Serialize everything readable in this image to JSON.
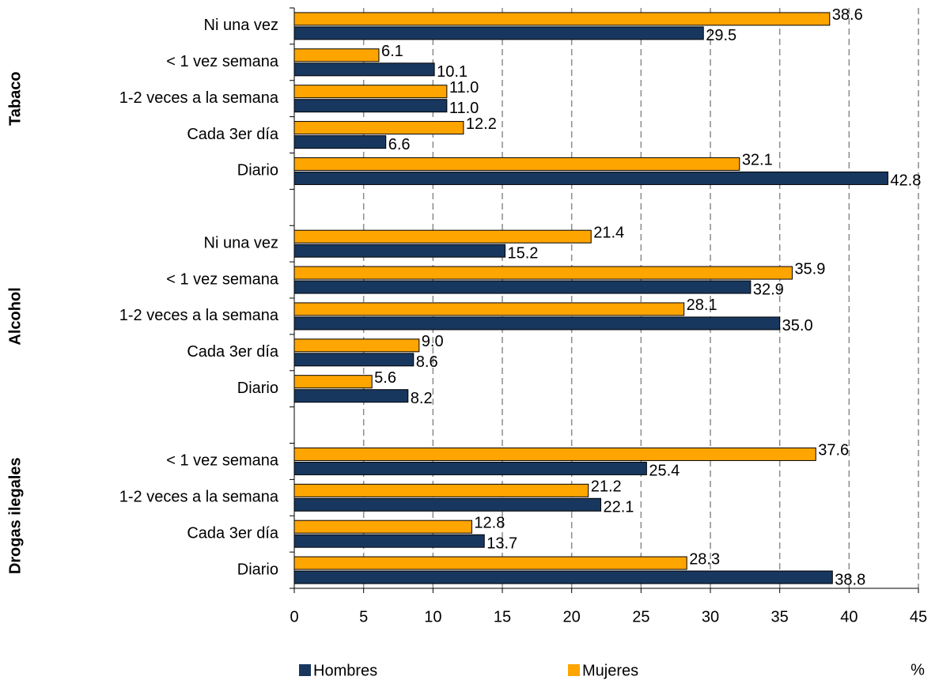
{
  "chart_data": {
    "type": "bar",
    "orientation": "horizontal",
    "groups": [
      "Tabaco",
      "Alcohol",
      "Drogas ilegales"
    ],
    "categories": [
      "Ni una vez",
      "< 1 vez semana",
      "1-2 veces a la semana",
      "Cada 3er día",
      "Diario",
      null,
      "Ni una vez",
      "< 1 vez semana",
      "1-2 veces a la semana",
      "Cada 3er día",
      "Diario",
      null,
      "< 1 vez semana",
      "1-2 veces a la semana",
      "Cada 3er día",
      "Diario"
    ],
    "series": [
      {
        "name": "Hombres",
        "color": "#17375e",
        "values": [
          29.5,
          10.1,
          11.0,
          6.6,
          42.8,
          null,
          15.2,
          32.9,
          35.0,
          8.6,
          8.2,
          null,
          25.4,
          22.1,
          13.7,
          38.8
        ],
        "value_labels": [
          "29.5",
          "10.1",
          "11.0",
          "6.6",
          "42.8",
          null,
          "15.2",
          "32.9",
          "35.0",
          "8.6",
          "8.2",
          null,
          "25.4",
          "22.1",
          "13.7",
          "38.8"
        ]
      },
      {
        "name": "Mujeres",
        "color": "#ffa500",
        "values": [
          38.6,
          6.1,
          11.0,
          12.2,
          32.1,
          null,
          21.4,
          35.9,
          28.1,
          9.0,
          5.6,
          null,
          37.6,
          21.2,
          12.8,
          28.3
        ],
        "value_labels": [
          "38.6",
          "6.1",
          "11.0",
          "12.2",
          "32.1",
          null,
          "21.4",
          "35.9",
          "28.1",
          "9.0",
          "5.6",
          null,
          "37.6",
          "21.2",
          "12.8",
          "28.3"
        ]
      }
    ],
    "x_label": "%",
    "xlim": [
      0,
      45
    ],
    "xticks": [
      0,
      5,
      10,
      15,
      20,
      25,
      30,
      35,
      40,
      45
    ],
    "grid": true,
    "legend": "bottom"
  }
}
